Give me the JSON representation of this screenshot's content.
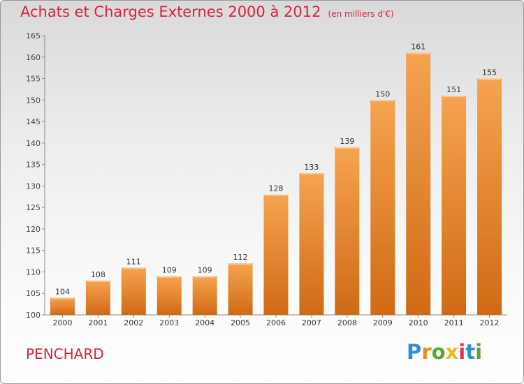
{
  "header": {
    "title": "Achats et Charges Externes 2000 à 2012",
    "subtitle": "(en milliers d'€)"
  },
  "footer": {
    "commune": "PENCHARD",
    "logo": {
      "letters": [
        "P",
        "r",
        "o",
        "x",
        "i",
        "t",
        "i"
      ],
      "colors": [
        "#2a8fd6",
        "#f08a1c",
        "#5aa531",
        "#f3b91b",
        "#e3334a",
        "#2a8fd6",
        "#5aa531"
      ]
    }
  },
  "chart_data": {
    "type": "bar",
    "title": "Achats et Charges Externes 2000 à 2012",
    "subtitle": "(en milliers d'€)",
    "categories": [
      "2000",
      "2001",
      "2002",
      "2003",
      "2004",
      "2005",
      "2006",
      "2007",
      "2008",
      "2009",
      "2010",
      "2011",
      "2012"
    ],
    "values": [
      104,
      108,
      111,
      109,
      109,
      112,
      128,
      133,
      139,
      150,
      161,
      151,
      155
    ],
    "ylim": [
      100,
      165
    ],
    "yticks": [
      100,
      105,
      110,
      115,
      120,
      125,
      130,
      135,
      140,
      145,
      150,
      155,
      160,
      165
    ],
    "grid": false,
    "bar_color_top": "#f6a350",
    "bar_color_bottom": "#d06a14",
    "axis_color": "#8a8a8a"
  }
}
